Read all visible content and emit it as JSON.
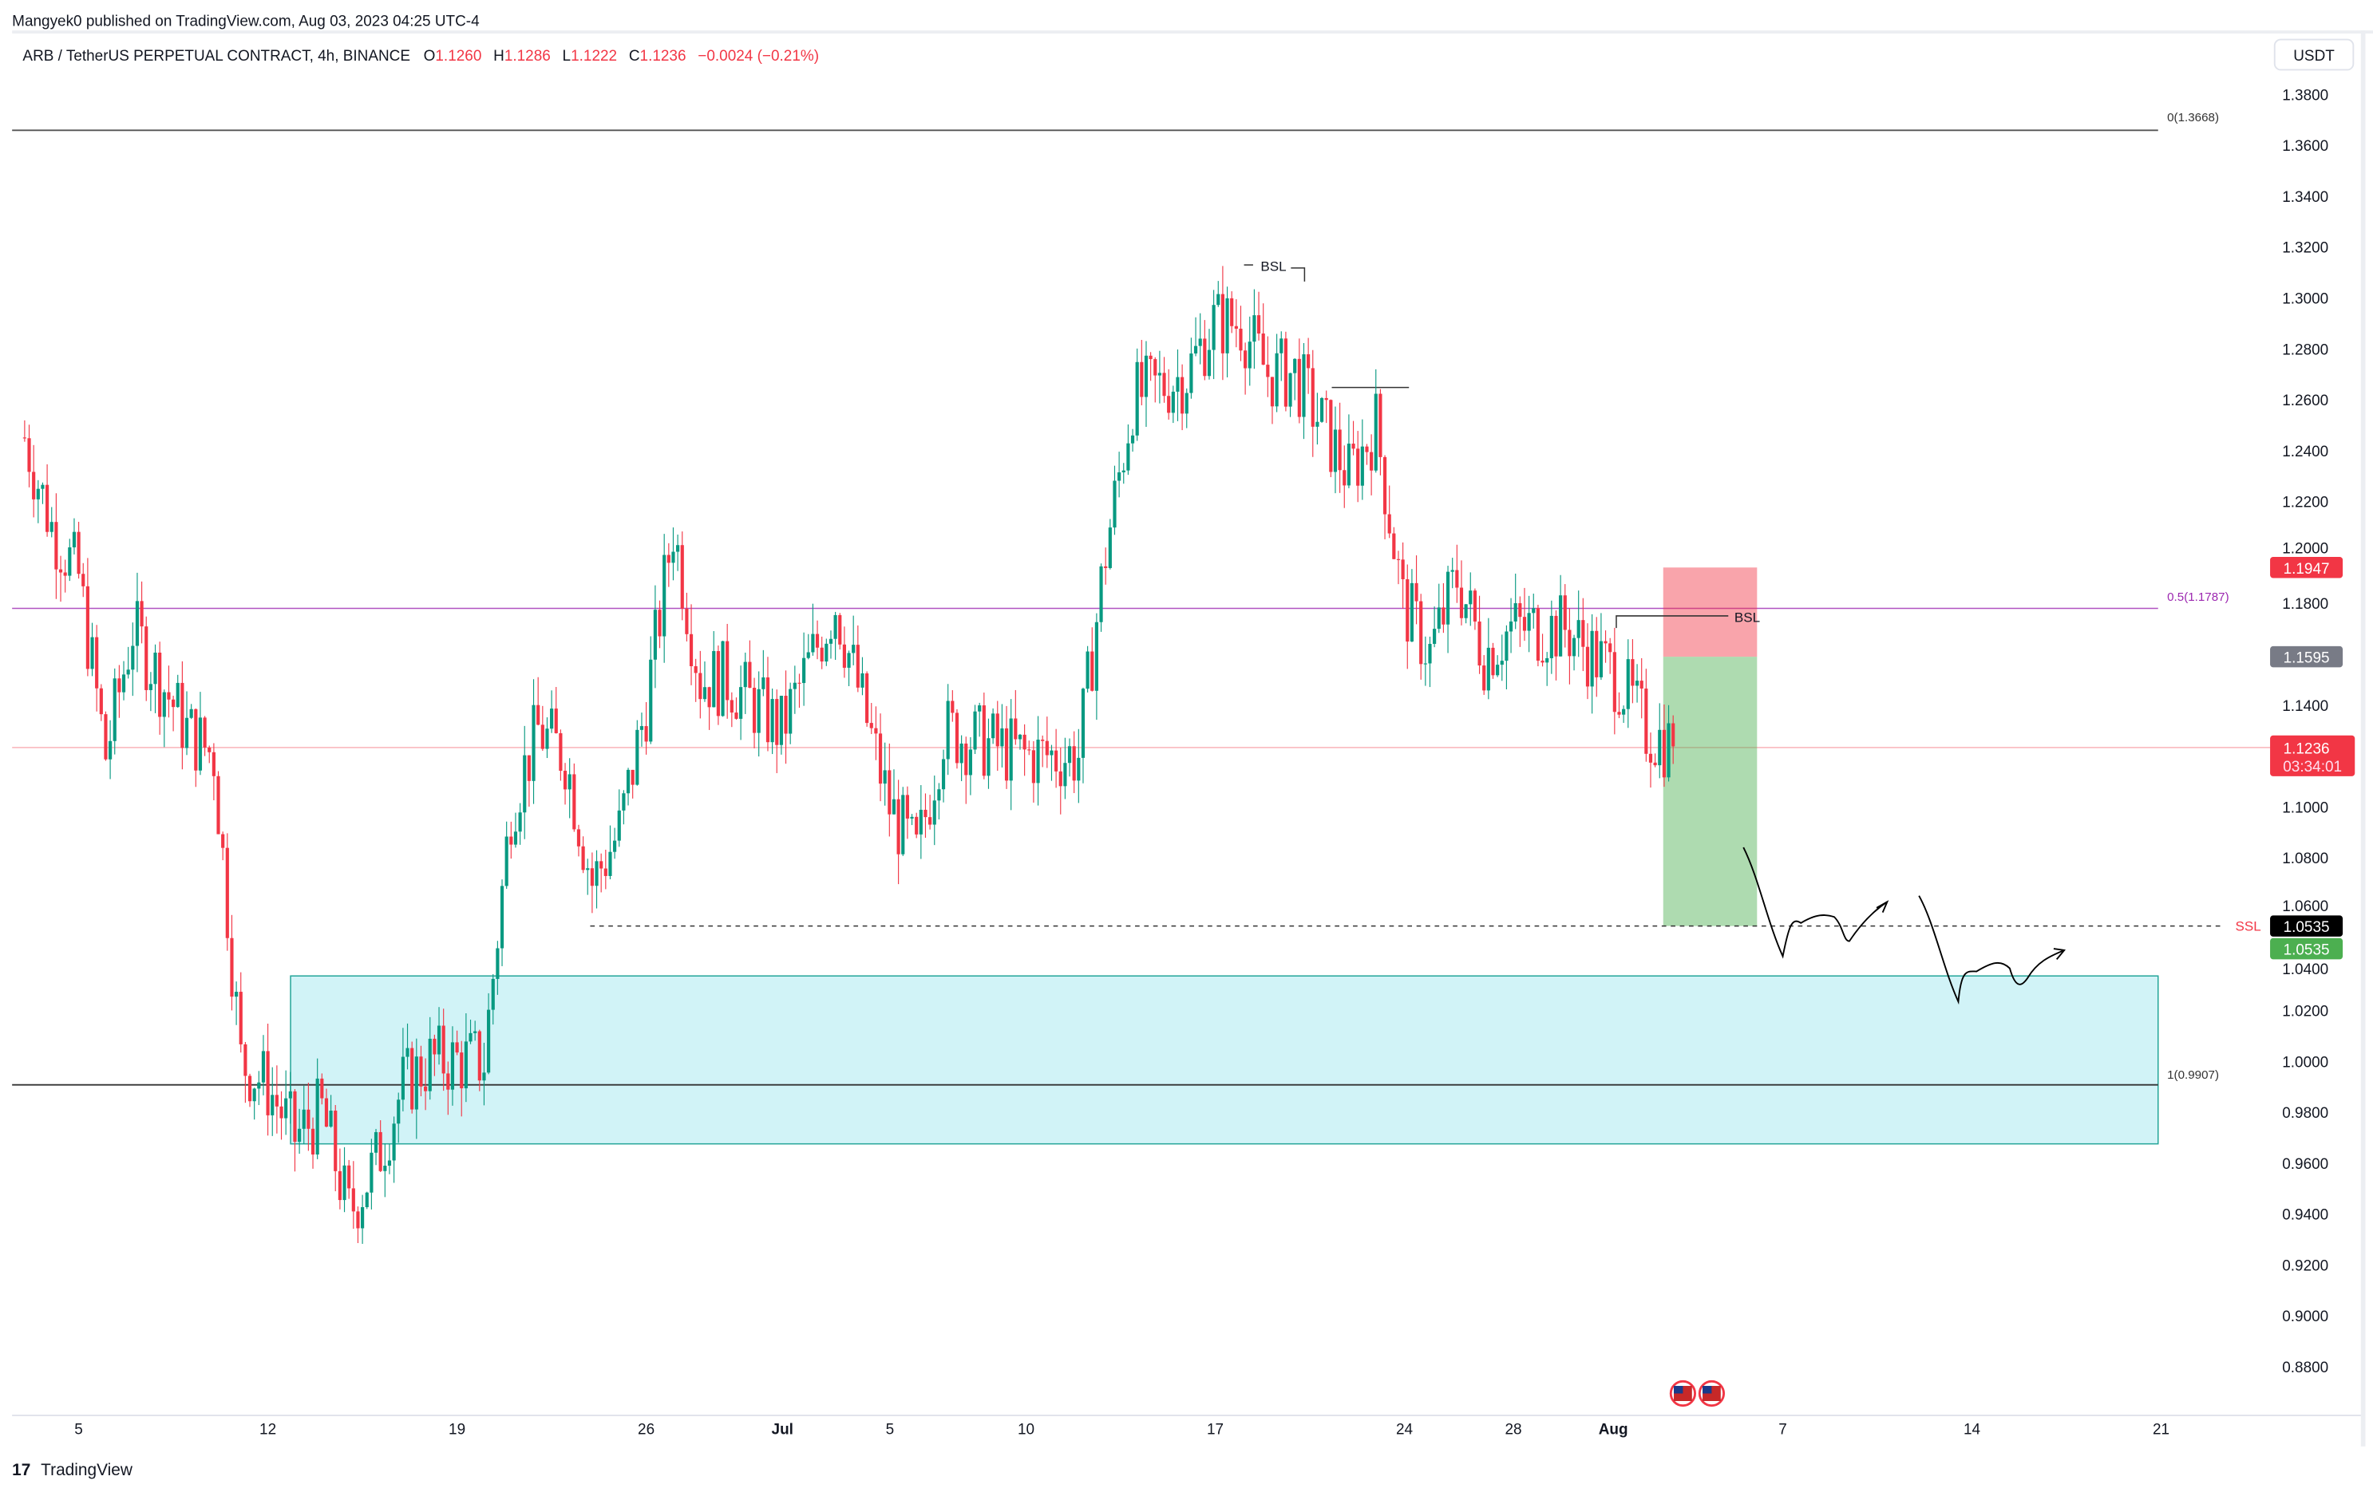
{
  "header": {
    "published": "Mangyek0 published on TradingView.com, Aug 03, 2023 04:25 UTC-4",
    "symbol": "ARB / TetherUS PERPETUAL CONTRACT, 4h, BINANCE",
    "o_label": "O",
    "o": "1.1260",
    "h_label": "H",
    "h": "1.1286",
    "l_label": "L",
    "l": "1.1222",
    "c_label": "C",
    "c": "1.1236",
    "change": "−0.0024 (−0.21%)"
  },
  "currency_button": "USDT",
  "price_axis": [
    "1.3800",
    "1.3600",
    "1.3400",
    "1.3200",
    "1.3000",
    "1.2800",
    "1.2600",
    "1.2400",
    "1.2200",
    "1.2000",
    "1.1800",
    "1.1400",
    "1.1000",
    "1.0800",
    "1.0600",
    "1.0400",
    "1.0200",
    "1.0000",
    "0.9800",
    "0.9600",
    "0.9400",
    "0.9200",
    "0.9000",
    "0.8800"
  ],
  "price_tags": {
    "stop": "1.1947",
    "entry": "1.1595",
    "last": "1.1236",
    "countdown": "03:34:01",
    "ssl": "1.0535",
    "target": "1.0535"
  },
  "time_axis": [
    {
      "label": "5",
      "bold": false
    },
    {
      "label": "12",
      "bold": false
    },
    {
      "label": "19",
      "bold": false
    },
    {
      "label": "26",
      "bold": false
    },
    {
      "label": "Jul",
      "bold": true
    },
    {
      "label": "5",
      "bold": false
    },
    {
      "label": "10",
      "bold": false
    },
    {
      "label": "17",
      "bold": false
    },
    {
      "label": "24",
      "bold": false
    },
    {
      "label": "28",
      "bold": false
    },
    {
      "label": "Aug",
      "bold": true
    },
    {
      "label": "7",
      "bold": false
    },
    {
      "label": "14",
      "bold": false
    },
    {
      "label": "21",
      "bold": false
    }
  ],
  "annotations": {
    "fib0": "0(1.3668)",
    "fib05": "0.5(1.1787)",
    "fib1": "1(0.9907)",
    "bsl_top": "BSL",
    "bsl_right": "BSL",
    "ssl": "SSL"
  },
  "colors": {
    "up": "#089981",
    "down": "#f23645",
    "fib_mid": "#9c27b0",
    "zone": "#b2ebf2",
    "target": "#4caf50",
    "stop": "#f23645"
  },
  "footer": {
    "logo": "TradingView"
  },
  "chart_data": {
    "type": "candlestick",
    "title": "ARB / TetherUS PERPETUAL CONTRACT, 4h, BINANCE",
    "ylim": [
      0.87,
      1.39
    ],
    "x_range": [
      "Jun 3 2023",
      "Aug 21 2023"
    ],
    "approx_close_path": [
      [
        "Jun 3",
        1.245
      ],
      [
        "Jun 4",
        1.21
      ],
      [
        "Jun 5",
        1.19
      ],
      [
        "Jun 6",
        1.12
      ],
      [
        "Jun 7",
        1.17
      ],
      [
        "Jun 8",
        1.15
      ],
      [
        "Jun 9",
        1.13
      ],
      [
        "Jun 10",
        1.12
      ],
      [
        "Jun 11",
        1.0
      ],
      [
        "Jun 12",
        0.99
      ],
      [
        "Jun 13",
        0.97
      ],
      [
        "Jun 14",
        0.98
      ],
      [
        "Jun 15",
        0.94
      ],
      [
        "Jun 16",
        0.96
      ],
      [
        "Jun 17",
        0.99
      ],
      [
        "Jun 18",
        1.0
      ],
      [
        "Jun 20",
        1.0
      ],
      [
        "Jun 21",
        1.1
      ],
      [
        "Jun 22",
        1.13
      ],
      [
        "Jun 23",
        1.12
      ],
      [
        "Jun 24",
        1.07
      ],
      [
        "Jun 25",
        1.09
      ],
      [
        "Jun 26",
        1.14
      ],
      [
        "Jun 27",
        1.21
      ],
      [
        "Jun 28",
        1.15
      ],
      [
        "Jun 29",
        1.15
      ],
      [
        "Jul 1",
        1.13
      ],
      [
        "Jul 3",
        1.18
      ],
      [
        "Jul 4",
        1.14
      ],
      [
        "Jul 5",
        1.1
      ],
      [
        "Jul 6",
        1.08
      ],
      [
        "Jul 7",
        1.13
      ],
      [
        "Jul 10",
        1.12
      ],
      [
        "Jul 12",
        1.12
      ],
      [
        "Jul 13",
        1.2
      ],
      [
        "Jul 14",
        1.26
      ],
      [
        "Jul 16",
        1.27
      ],
      [
        "Jul 17",
        1.29
      ],
      [
        "Jul 18",
        1.29
      ],
      [
        "Jul 19",
        1.27
      ],
      [
        "Jul 20",
        1.27
      ],
      [
        "Jul 22",
        1.23
      ],
      [
        "Jul 23",
        1.25
      ],
      [
        "Jul 24",
        1.18
      ],
      [
        "Jul 25",
        1.16
      ],
      [
        "Jul 26",
        1.19
      ],
      [
        "Jul 27",
        1.16
      ],
      [
        "Jul 28",
        1.17
      ],
      [
        "Jul 30",
        1.17
      ],
      [
        "Jul 31",
        1.16
      ],
      [
        "Aug 1",
        1.15
      ],
      [
        "Aug 2",
        1.13
      ],
      [
        "Aug 3",
        1.1236
      ]
    ],
    "horizontal_levels": {
      "fib_0": 1.3668,
      "fib_0.5": 1.1787,
      "fib_1": 0.9907,
      "ssl": 1.0535,
      "last": 1.1236
    },
    "demand_zone": [
      0.968,
      1.034
    ],
    "short_position": {
      "entry": 1.1595,
      "stop": 1.1947,
      "target": 1.0535
    }
  }
}
